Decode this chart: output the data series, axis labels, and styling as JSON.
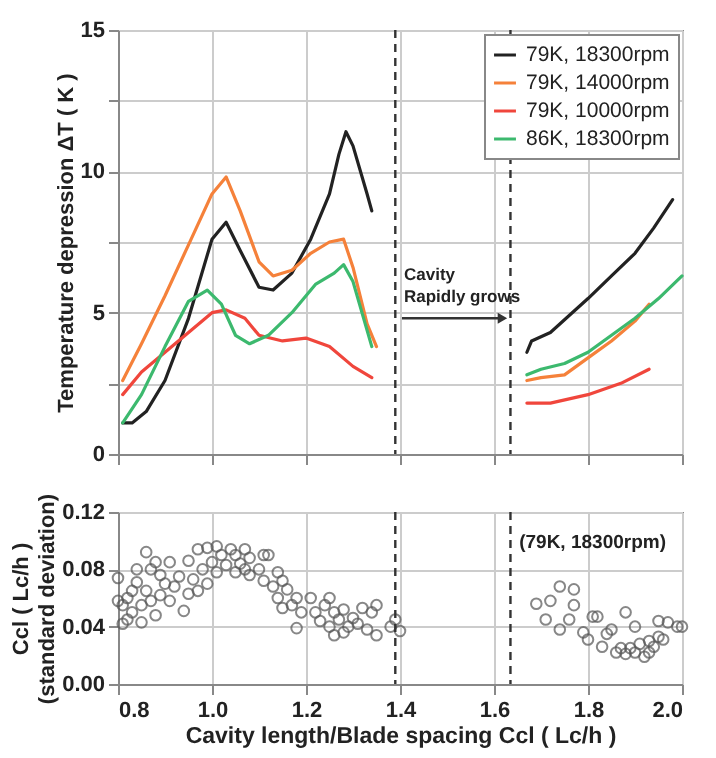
{
  "chart_data": [
    {
      "type": "line",
      "ylabel": "Temperature depression ΔT ( K )",
      "xlim": [
        0.8,
        2.0
      ],
      "xticks": [
        0.8,
        1.0,
        1.2,
        1.4,
        1.6,
        1.8,
        2.0
      ],
      "ylim": [
        0,
        15
      ],
      "yticks": [
        0,
        {
          "value": 2.5,
          "label": null
        },
        5,
        {
          "value": 7.5,
          "label": null
        },
        10,
        {
          "value": 12.5,
          "label": null
        },
        15
      ],
      "tick_labels": "y",
      "grid": true,
      "legend": "top right",
      "marker": "none",
      "line_style": "solid",
      "series": [
        {
          "name": "79K, 18300rpm",
          "color": "#222222",
          "x": [
            0.81,
            0.83,
            0.86,
            0.9,
            0.95,
            1.0,
            1.03,
            1.06,
            1.1,
            1.13,
            1.17,
            1.21,
            1.25,
            1.27,
            1.285,
            1.3,
            1.33,
            1.34,
            1.5,
            1.67,
            1.68,
            1.72,
            1.76,
            1.8,
            1.85,
            1.9,
            1.94,
            1.98
          ],
          "values": [
            1.1,
            1.1,
            1.5,
            2.6,
            4.8,
            7.6,
            8.2,
            7.2,
            5.9,
            5.8,
            6.4,
            7.6,
            9.2,
            10.6,
            11.4,
            10.9,
            9.2,
            8.6,
            null,
            3.6,
            4.0,
            4.3,
            4.9,
            5.5,
            6.3,
            7.1,
            8.0,
            9.0
          ]
        },
        {
          "name": "79K, 14000rpm",
          "color": "#f5813a",
          "x": [
            0.81,
            0.85,
            0.9,
            0.95,
            1.0,
            1.03,
            1.06,
            1.1,
            1.13,
            1.17,
            1.21,
            1.25,
            1.28,
            1.3,
            1.33,
            1.35,
            1.5,
            1.67,
            1.7,
            1.75,
            1.8,
            1.85,
            1.9,
            1.93
          ],
          "values": [
            2.6,
            3.9,
            5.6,
            7.4,
            9.2,
            9.8,
            8.6,
            6.8,
            6.3,
            6.5,
            7.1,
            7.5,
            7.6,
            6.6,
            4.6,
            3.8,
            null,
            2.6,
            2.7,
            2.8,
            3.4,
            4.0,
            4.7,
            5.3
          ]
        },
        {
          "name": "79K, 10000rpm",
          "color": "#f0463c",
          "x": [
            0.81,
            0.85,
            0.9,
            0.95,
            1.0,
            1.03,
            1.07,
            1.1,
            1.15,
            1.2,
            1.25,
            1.3,
            1.34,
            1.5,
            1.67,
            1.72,
            1.8,
            1.87,
            1.93
          ],
          "values": [
            2.1,
            2.9,
            3.6,
            4.3,
            5.0,
            5.1,
            4.8,
            4.2,
            4.0,
            4.1,
            3.8,
            3.1,
            2.7,
            null,
            1.8,
            1.8,
            2.1,
            2.5,
            3.0
          ]
        },
        {
          "name": "86K, 18300rpm",
          "color": "#3cb96e",
          "x": [
            0.81,
            0.85,
            0.9,
            0.95,
            0.99,
            1.02,
            1.05,
            1.08,
            1.12,
            1.17,
            1.22,
            1.26,
            1.28,
            1.3,
            1.34,
            1.5,
            1.67,
            1.7,
            1.75,
            1.8,
            1.85,
            1.9,
            1.95,
            2.0
          ],
          "values": [
            1.1,
            2.1,
            3.8,
            5.4,
            5.8,
            5.3,
            4.2,
            3.9,
            4.2,
            5.0,
            6.0,
            6.4,
            6.7,
            6.1,
            3.8,
            null,
            2.8,
            3.0,
            3.2,
            3.6,
            4.2,
            4.8,
            5.5,
            6.3
          ]
        }
      ],
      "ref_lines": [
        {
          "axis": "x",
          "value": 1.39,
          "line_style": "dashed",
          "color": "#333333"
        },
        {
          "axis": "x",
          "value": 1.635,
          "line_style": "dashed",
          "color": "#333333"
        }
      ],
      "annotations": [
        {
          "text": "Cavity\nRapidly grows",
          "x": 1.4,
          "y": 4.8
        }
      ]
    },
    {
      "type": "scatter",
      "xlabel": "Cavity length/Blade spacing Ccl ( Lc/h )",
      "ylabel": "Ccl ( Lc/h )\n(standard deviation)",
      "xlim": [
        0.8,
        2.0
      ],
      "xticks": [
        0.8,
        {
          "value": 1.0,
          "label": "1.0"
        },
        1.2,
        1.4,
        1.6,
        1.8,
        {
          "value": 2.0,
          "label": "2.0"
        }
      ],
      "ylim": [
        0,
        0.12
      ],
      "yticks": [
        {
          "value": 0,
          "label": "0.00"
        },
        0.04,
        0.08,
        0.12
      ],
      "grid": true,
      "marker": "circle",
      "series": [
        {
          "color": "#555555",
          "x": [
            0.8,
            0.8,
            0.81,
            0.81,
            0.82,
            0.82,
            0.83,
            0.83,
            0.84,
            0.84,
            0.85,
            0.85,
            0.86,
            0.86,
            0.87,
            0.87,
            0.88,
            0.88,
            0.89,
            0.89,
            0.9,
            0.91,
            0.91,
            0.92,
            0.93,
            0.94,
            0.95,
            0.95,
            0.96,
            0.97,
            0.97,
            0.98,
            0.99,
            0.99,
            1.0,
            1.01,
            1.01,
            1.02,
            1.03,
            1.04,
            1.05,
            1.05,
            1.06,
            1.07,
            1.07,
            1.08,
            1.08,
            1.1,
            1.11,
            1.11,
            1.12,
            1.13,
            1.14,
            1.14,
            1.15,
            1.15,
            1.16,
            1.17,
            1.18,
            1.18,
            1.19,
            1.21,
            1.22,
            1.23,
            1.24,
            1.25,
            1.25,
            1.26,
            1.26,
            1.27,
            1.28,
            1.28,
            1.29,
            1.3,
            1.31,
            1.32,
            1.33,
            1.34,
            1.35,
            1.35,
            1.38,
            1.39,
            1.4,
            1.69,
            1.71,
            1.72,
            1.74,
            1.74,
            1.76,
            1.77,
            1.77,
            1.79,
            1.8,
            1.81,
            1.82,
            1.83,
            1.84,
            1.85,
            1.86,
            1.87,
            1.88,
            1.88,
            1.89,
            1.9,
            1.9,
            1.91,
            1.92,
            1.93,
            1.93,
            1.94,
            1.95,
            1.95,
            1.96,
            1.97,
            1.99,
            2.0
          ],
          "values": [
            0.074,
            0.058,
            0.055,
            0.042,
            0.045,
            0.06,
            0.05,
            0.065,
            0.08,
            0.071,
            0.055,
            0.043,
            0.092,
            0.065,
            0.08,
            0.058,
            0.085,
            0.048,
            0.076,
            0.062,
            0.07,
            0.085,
            0.058,
            0.068,
            0.075,
            0.051,
            0.086,
            0.063,
            0.073,
            0.094,
            0.065,
            0.08,
            0.095,
            0.07,
            0.085,
            0.096,
            0.078,
            0.09,
            0.083,
            0.094,
            0.078,
            0.09,
            0.084,
            0.094,
            0.08,
            0.088,
            0.076,
            0.08,
            0.09,
            0.072,
            0.09,
            0.068,
            0.078,
            0.06,
            0.072,
            0.053,
            0.066,
            0.055,
            0.06,
            0.039,
            0.05,
            0.06,
            0.05,
            0.044,
            0.055,
            0.06,
            0.04,
            0.05,
            0.034,
            0.045,
            0.052,
            0.036,
            0.04,
            0.046,
            0.042,
            0.053,
            0.038,
            0.05,
            0.055,
            0.034,
            0.04,
            0.045,
            0.037,
            0.056,
            0.045,
            0.058,
            0.068,
            0.038,
            0.045,
            0.066,
            0.055,
            0.036,
            0.031,
            0.047,
            0.047,
            0.026,
            0.035,
            0.038,
            0.022,
            0.025,
            0.021,
            0.05,
            0.025,
            0.04,
            0.022,
            0.028,
            0.019,
            0.03,
            0.022,
            0.026,
            0.033,
            0.044,
            0.031,
            0.043,
            0.04,
            0.04
          ]
        }
      ],
      "ref_lines": [
        {
          "axis": "x",
          "value": 1.39,
          "line_style": "dashed",
          "color": "#333333"
        },
        {
          "axis": "x",
          "value": 1.635,
          "line_style": "dashed",
          "color": "#333333"
        }
      ],
      "annotations": [
        "(79K, 18300rpm)"
      ]
    }
  ]
}
